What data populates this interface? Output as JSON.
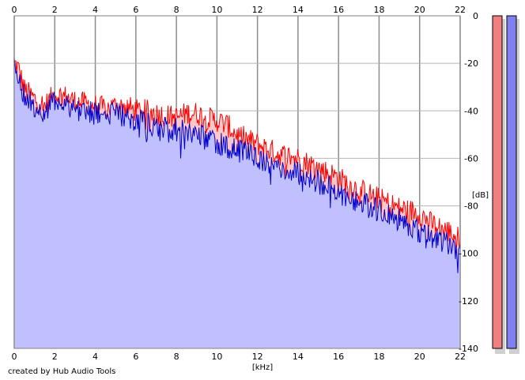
{
  "chart_data": {
    "type": "area",
    "x_unit_label": "[kHz]",
    "y_unit_label": "[dB]",
    "xlim": [
      0,
      22
    ],
    "ylim": [
      -140,
      0
    ],
    "x_ticks": [
      "0",
      "2",
      "4",
      "6",
      "8",
      "10",
      "12",
      "14",
      "16",
      "18",
      "20",
      "22"
    ],
    "y_ticks": [
      "0",
      "-20",
      "-40",
      "-60",
      "-80",
      "-100",
      "-120",
      "-140"
    ],
    "grid": true,
    "series": [
      {
        "color": "#ff0000",
        "fill": "#ffc8c8",
        "x": [
          0,
          0.2,
          0.5,
          1,
          1.5,
          2,
          2.5,
          3,
          3.5,
          4,
          4.5,
          5,
          5.5,
          6,
          6.5,
          7,
          7.5,
          8,
          8.5,
          9,
          9.5,
          10,
          10.5,
          11,
          11.5,
          12,
          12.5,
          13,
          13.5,
          14,
          14.5,
          15,
          15.5,
          16,
          16.5,
          17,
          17.5,
          18,
          18.5,
          19,
          19.5,
          20,
          20.5,
          21,
          21.5,
          22
        ],
        "values": [
          -20,
          -22,
          -31,
          -35,
          -38,
          -33,
          -34,
          -36,
          -37,
          -38,
          -39,
          -38,
          -38,
          -40,
          -40,
          -41,
          -42,
          -43,
          -41,
          -41,
          -43,
          -44,
          -46,
          -50,
          -52,
          -54,
          -56,
          -58,
          -59,
          -60,
          -62,
          -64,
          -66,
          -68,
          -71,
          -73,
          -75,
          -77,
          -79,
          -81,
          -82,
          -83,
          -87,
          -89,
          -91,
          -94
        ]
      },
      {
        "color": "#0000cc",
        "fill": "#c0c0ff",
        "x": [
          0,
          0.2,
          0.5,
          1,
          1.5,
          2,
          2.5,
          3,
          3.5,
          4,
          4.5,
          5,
          5.5,
          6,
          6.5,
          7,
          7.5,
          8,
          8.5,
          9,
          9.5,
          10,
          10.5,
          11,
          11.5,
          12,
          12.5,
          13,
          13.5,
          14,
          14.5,
          15,
          15.5,
          16,
          16.5,
          17,
          17.5,
          18,
          18.5,
          19,
          19.5,
          20,
          20.5,
          21,
          21.5,
          22
        ],
        "values": [
          -22,
          -24,
          -34,
          -38,
          -41,
          -35,
          -37,
          -39,
          -40,
          -41,
          -42,
          -41,
          -42,
          -44,
          -45,
          -46,
          -47,
          -48,
          -48,
          -50,
          -52,
          -53,
          -55,
          -57,
          -58,
          -60,
          -62,
          -64,
          -65,
          -66,
          -68,
          -70,
          -72,
          -74,
          -76,
          -78,
          -80,
          -82,
          -84,
          -86,
          -88,
          -91,
          -93,
          -94,
          -96,
          -99
        ]
      }
    ]
  },
  "meters": [
    {
      "color": "#f08080"
    },
    {
      "color": "#8080f0"
    }
  ],
  "footer": "created by Hub Audio Tools"
}
